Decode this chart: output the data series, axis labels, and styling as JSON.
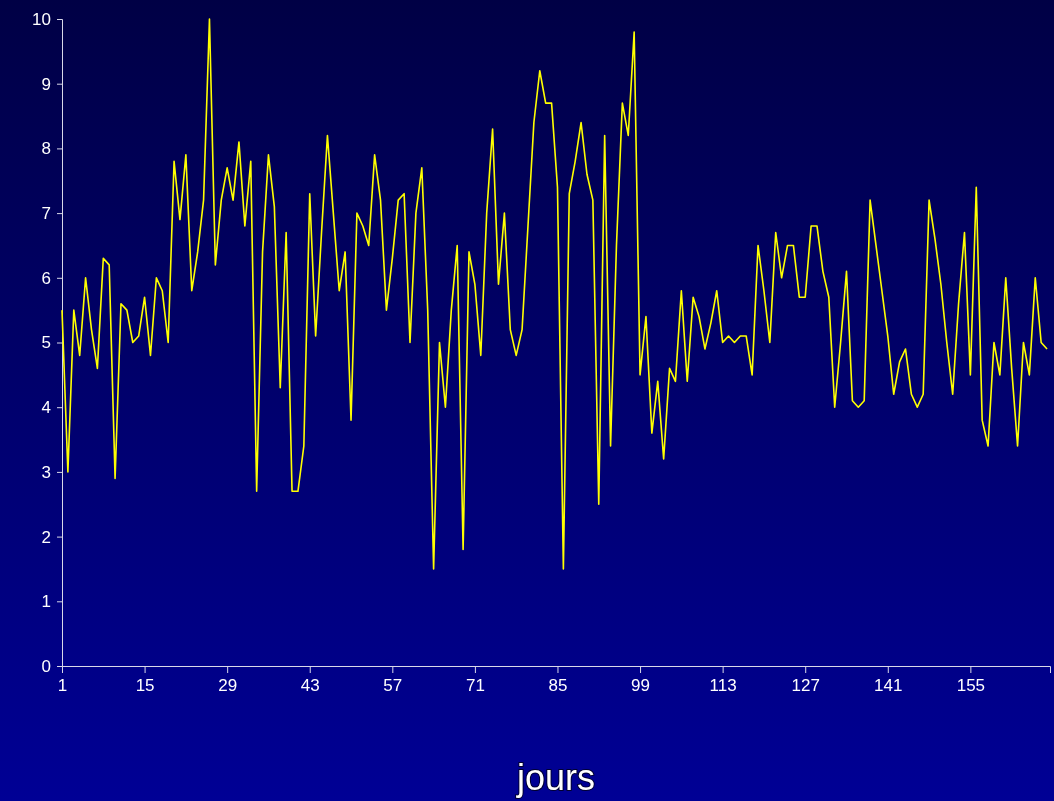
{
  "chart_data": {
    "type": "line",
    "xlabel": "jours",
    "x": [
      1,
      2,
      3,
      4,
      5,
      6,
      7,
      8,
      9,
      10,
      11,
      12,
      13,
      14,
      15,
      16,
      17,
      18,
      19,
      20,
      21,
      22,
      23,
      24,
      25,
      26,
      27,
      28,
      29,
      30,
      31,
      32,
      33,
      34,
      35,
      36,
      37,
      38,
      39,
      40,
      41,
      42,
      43,
      44,
      45,
      46,
      47,
      48,
      49,
      50,
      51,
      52,
      53,
      54,
      55,
      56,
      57,
      58,
      59,
      60,
      61,
      62,
      63,
      64,
      65,
      66,
      67,
      68,
      69,
      70,
      71,
      72,
      73,
      74,
      75,
      76,
      77,
      78,
      79,
      80,
      81,
      82,
      83,
      84,
      85,
      86,
      87,
      88,
      89,
      90,
      91,
      92,
      93,
      94,
      95,
      96,
      97,
      98,
      99,
      100,
      101,
      102,
      103,
      104,
      105,
      106,
      107,
      108,
      109,
      110,
      111,
      112,
      113,
      114,
      115,
      116,
      117,
      118,
      119,
      120,
      121,
      122,
      123,
      124,
      125,
      126,
      127,
      128,
      129,
      130,
      131,
      132,
      133,
      134,
      135,
      136,
      137,
      138,
      139,
      140,
      141,
      142,
      143,
      144,
      145,
      146,
      147,
      148,
      149,
      150,
      151,
      152,
      153,
      154,
      155,
      156,
      157,
      158,
      159,
      160,
      161,
      162,
      163,
      164,
      165,
      166,
      167,
      168
    ],
    "series": [
      {
        "color": "#ffff00",
        "values": [
          5.5,
          3.0,
          5.5,
          4.8,
          6.0,
          5.2,
          4.6,
          6.3,
          6.2,
          2.9,
          5.6,
          5.5,
          5.0,
          5.1,
          5.7,
          4.8,
          6.0,
          5.8,
          5.0,
          7.8,
          6.9,
          7.9,
          5.8,
          6.4,
          7.2,
          10.0,
          6.2,
          7.2,
          7.7,
          7.2,
          8.1,
          6.8,
          7.8,
          2.7,
          6.4,
          7.9,
          7.1,
          4.3,
          6.7,
          2.7,
          2.7,
          3.4,
          7.3,
          5.1,
          6.7,
          8.2,
          7.0,
          5.8,
          6.4,
          3.8,
          7.0,
          6.8,
          6.5,
          7.9,
          7.2,
          5.5,
          6.3,
          7.2,
          7.3,
          5.0,
          7.0,
          7.7,
          5.5,
          1.5,
          5.0,
          4.0,
          5.5,
          6.5,
          1.8,
          6.4,
          5.9,
          4.8,
          7.0,
          8.3,
          5.9,
          7.0,
          5.2,
          4.8,
          5.2,
          6.8,
          8.4,
          9.2,
          8.7,
          8.7,
          7.4,
          1.5,
          7.3,
          7.8,
          8.4,
          7.6,
          7.2,
          2.5,
          8.2,
          3.4,
          6.5,
          8.7,
          8.2,
          9.8,
          4.5,
          5.4,
          3.6,
          4.4,
          3.2,
          4.6,
          4.4,
          5.8,
          4.4,
          5.7,
          5.4,
          4.9,
          5.3,
          5.8,
          5.0,
          5.1,
          5.0,
          5.1,
          5.1,
          4.5,
          6.5,
          5.8,
          5.0,
          6.7,
          6.0,
          6.5,
          6.5,
          5.7,
          5.7,
          6.8,
          6.8,
          6.1,
          5.7,
          4.0,
          5.0,
          6.1,
          4.1,
          4.0,
          4.1,
          7.2,
          6.5,
          5.8,
          5.1,
          4.2,
          4.7,
          4.9,
          4.2,
          4.0,
          4.2,
          7.2,
          6.6,
          5.9,
          5.0,
          4.2,
          5.6,
          6.7,
          4.5,
          7.4,
          3.8,
          3.4,
          5.0,
          4.5,
          6.0,
          4.6,
          3.4,
          5.0,
          4.5,
          6.0,
          5.0,
          4.9
        ]
      }
    ],
    "xlim": [
      1,
      168.5
    ],
    "ylim": [
      0,
      10
    ],
    "xticks": [
      1,
      15,
      29,
      43,
      57,
      71,
      85,
      99,
      113,
      127,
      141,
      155
    ],
    "yticks": [
      0,
      1,
      2,
      3,
      4,
      5,
      6,
      7,
      8,
      9,
      10
    ],
    "grid": false,
    "marker": "none",
    "line_style": "solid"
  }
}
